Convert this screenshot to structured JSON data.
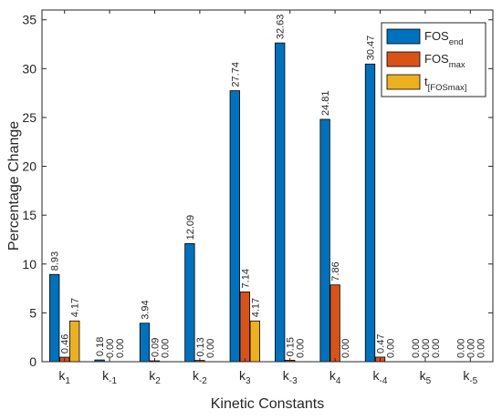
{
  "chart_data": {
    "type": "bar",
    "xlabel": "Kinetic Constants",
    "ylabel": "Percentage Change",
    "ylim": [
      0,
      36
    ],
    "yticks": [
      0,
      5,
      10,
      15,
      20,
      25,
      30,
      35
    ],
    "grid": false,
    "legend_position": "top-right",
    "categories": [
      {
        "base": "k",
        "sub": "1"
      },
      {
        "base": "k",
        "sub": "-1"
      },
      {
        "base": "k",
        "sub": "2"
      },
      {
        "base": "k",
        "sub": "-2"
      },
      {
        "base": "k",
        "sub": "3"
      },
      {
        "base": "k",
        "sub": "-3"
      },
      {
        "base": "k",
        "sub": "4"
      },
      {
        "base": "k",
        "sub": "-4"
      },
      {
        "base": "k",
        "sub": "5"
      },
      {
        "base": "k",
        "sub": "-5"
      }
    ],
    "series": [
      {
        "name": {
          "base": "FOS",
          "sub": "end"
        },
        "color": "#0072BD",
        "values": [
          8.93,
          0.18,
          3.94,
          12.09,
          27.74,
          32.63,
          24.81,
          30.47,
          0.0,
          0.0
        ],
        "labels": [
          "8.93",
          "0.18",
          "3.94",
          "12.09",
          "27.74",
          "32.63",
          "24.81",
          "30.47",
          "0.00",
          "0.00"
        ]
      },
      {
        "name": {
          "base": "FOS",
          "sub": "max"
        },
        "color": "#D95319",
        "values": [
          0.46,
          0.0,
          0.09,
          0.13,
          7.14,
          0.15,
          7.86,
          0.47,
          0.0,
          0.0
        ],
        "labels": [
          "0.46",
          "0.00",
          "0.09",
          "0.13",
          "7.14",
          "0.15",
          "7.86",
          "0.47",
          "0.00",
          "0.00"
        ]
      },
      {
        "name": {
          "base": "t",
          "sub": "[FOSmax]"
        },
        "color": "#EDB120",
        "values": [
          4.17,
          0.0,
          0.0,
          0.0,
          4.17,
          0.0,
          0.0,
          0.0,
          0.0,
          0.0
        ],
        "labels": [
          "4.17",
          "0.00",
          "0.00",
          "0.00",
          "4.17",
          "0.00",
          "0.00",
          "0.00",
          "0.00",
          "0.00"
        ]
      }
    ]
  }
}
